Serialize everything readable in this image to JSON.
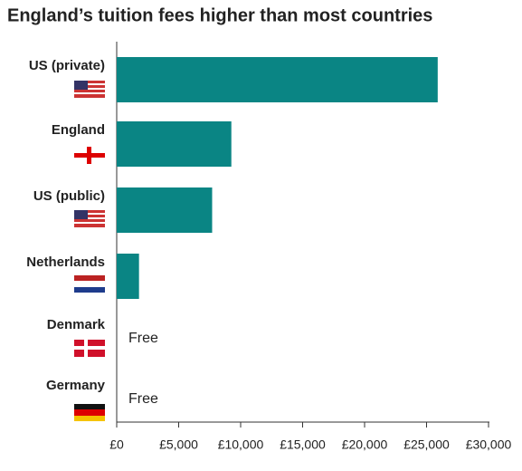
{
  "chart_data": {
    "type": "bar",
    "orientation": "horizontal",
    "title": "England’s tuition fees higher than most countries",
    "categories": [
      "US (private)",
      "England",
      "US (public)",
      "Netherlands",
      "Denmark",
      "Germany"
    ],
    "values": [
      25900,
      9250,
      7700,
      1800,
      0,
      0
    ],
    "value_labels": [
      null,
      null,
      null,
      null,
      "Free",
      "Free"
    ],
    "color": "#0a8584",
    "xlim": [
      0,
      30000
    ],
    "xticks": [
      {
        "value": 0,
        "label": "£0"
      },
      {
        "value": 5000,
        "label": "£5,000"
      },
      {
        "value": 10000,
        "label": "£10,000"
      },
      {
        "value": 15000,
        "label": "£15,000"
      },
      {
        "value": 20000,
        "label": "£20,000"
      },
      {
        "value": 25000,
        "label": "£25,000"
      },
      {
        "value": 30000,
        "label": "£30,000"
      }
    ]
  }
}
